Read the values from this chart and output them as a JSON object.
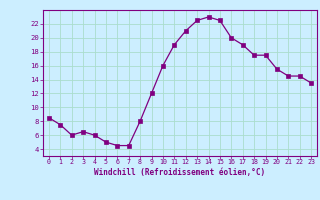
{
  "hours": [
    0,
    1,
    2,
    3,
    4,
    5,
    6,
    7,
    8,
    9,
    10,
    11,
    12,
    13,
    14,
    15,
    16,
    17,
    18,
    19,
    20,
    21,
    22,
    23
  ],
  "values": [
    8.5,
    7.5,
    6.0,
    6.5,
    6.0,
    5.0,
    4.5,
    4.5,
    8.0,
    12.0,
    16.0,
    19.0,
    21.0,
    22.5,
    23.0,
    22.5,
    20.0,
    19.0,
    17.5,
    17.5,
    15.5,
    14.5,
    14.5,
    13.5
  ],
  "line_color": "#800080",
  "marker_color": "#800080",
  "bg_color": "#cceeff",
  "grid_color": "#aaddcc",
  "xlabel": "Windchill (Refroidissement éolien,°C)",
  "xlabel_color": "#800080",
  "tick_color": "#800080",
  "ylim": [
    3,
    24
  ],
  "xlim": [
    -0.5,
    23.5
  ],
  "yticks": [
    4,
    6,
    8,
    10,
    12,
    14,
    16,
    18,
    20,
    22
  ],
  "xticks": [
    0,
    1,
    2,
    3,
    4,
    5,
    6,
    7,
    8,
    9,
    10,
    11,
    12,
    13,
    14,
    15,
    16,
    17,
    18,
    19,
    20,
    21,
    22,
    23
  ],
  "spine_color": "#800080"
}
